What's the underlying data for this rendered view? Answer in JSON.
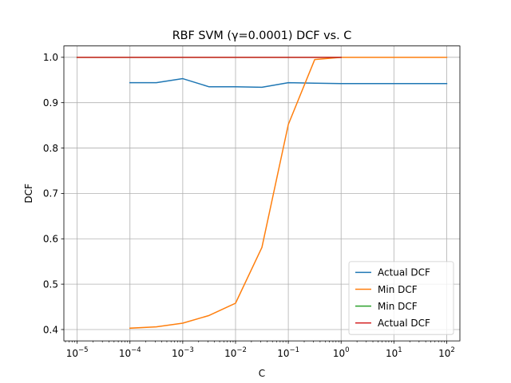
{
  "chart_data": {
    "type": "line",
    "title": "RBF SVM (γ=0.0001) DCF vs. C",
    "xlabel": "C",
    "ylabel": "DCF",
    "xscale": "log",
    "xlim": [
      5.6e-06,
      178
    ],
    "ylim": [
      0.375,
      1.025
    ],
    "grid": true,
    "legend_position": "bottom-right",
    "xticks": [
      {
        "value": 1e-05,
        "base": "10",
        "exp": "−5"
      },
      {
        "value": 0.0001,
        "base": "10",
        "exp": "−4"
      },
      {
        "value": 0.001,
        "base": "10",
        "exp": "−3"
      },
      {
        "value": 0.01,
        "base": "10",
        "exp": "−2"
      },
      {
        "value": 0.1,
        "base": "10",
        "exp": "−1"
      },
      {
        "value": 1,
        "base": "10",
        "exp": "0"
      },
      {
        "value": 10,
        "base": "10",
        "exp": "1"
      },
      {
        "value": 100,
        "base": "10",
        "exp": "2"
      }
    ],
    "yticks": [
      {
        "value": 0.4,
        "label": "0.4"
      },
      {
        "value": 0.5,
        "label": "0.5"
      },
      {
        "value": 0.6,
        "label": "0.6"
      },
      {
        "value": 0.7,
        "label": "0.7"
      },
      {
        "value": 0.8,
        "label": "0.8"
      },
      {
        "value": 0.9,
        "label": "0.9"
      },
      {
        "value": 1.0,
        "label": "1.0"
      }
    ],
    "series": [
      {
        "name": "Actual DCF",
        "color": "#1f77b4",
        "points": [
          [
            0.0001,
            0.944
          ],
          [
            0.000316,
            0.944
          ],
          [
            0.001,
            0.953
          ],
          [
            0.00316,
            0.935
          ],
          [
            0.01,
            0.935
          ],
          [
            0.0316,
            0.934
          ],
          [
            0.1,
            0.944
          ],
          [
            0.316,
            0.943
          ],
          [
            1,
            0.942
          ],
          [
            3.16,
            0.942
          ],
          [
            10,
            0.942
          ],
          [
            31.6,
            0.942
          ],
          [
            100,
            0.942
          ]
        ]
      },
      {
        "name": "Min DCF",
        "color": "#ff7f0e",
        "points": [
          [
            0.0001,
            0.403
          ],
          [
            0.000316,
            0.406
          ],
          [
            0.001,
            0.414
          ],
          [
            0.00316,
            0.431
          ],
          [
            0.01,
            0.458
          ],
          [
            0.0316,
            0.581
          ],
          [
            0.1,
            0.852
          ],
          [
            0.316,
            0.995
          ],
          [
            1,
            1.0
          ],
          [
            3.16,
            1.0
          ],
          [
            10,
            1.0
          ],
          [
            31.6,
            1.0
          ],
          [
            100,
            1.0
          ]
        ]
      },
      {
        "name": "Min DCF",
        "color": "#2ca02c",
        "points": [
          [
            1e-05,
            1.0
          ],
          [
            0.0001,
            1.0
          ],
          [
            0.001,
            1.0
          ],
          [
            0.01,
            1.0
          ],
          [
            0.1,
            1.0
          ],
          [
            1,
            1.0
          ]
        ]
      },
      {
        "name": "Actual DCF",
        "color": "#d62728",
        "points": [
          [
            1e-05,
            1.0
          ],
          [
            0.0001,
            1.0
          ],
          [
            0.001,
            1.0
          ],
          [
            0.01,
            1.0
          ],
          [
            0.1,
            1.0
          ],
          [
            1,
            1.0
          ]
        ]
      }
    ]
  }
}
